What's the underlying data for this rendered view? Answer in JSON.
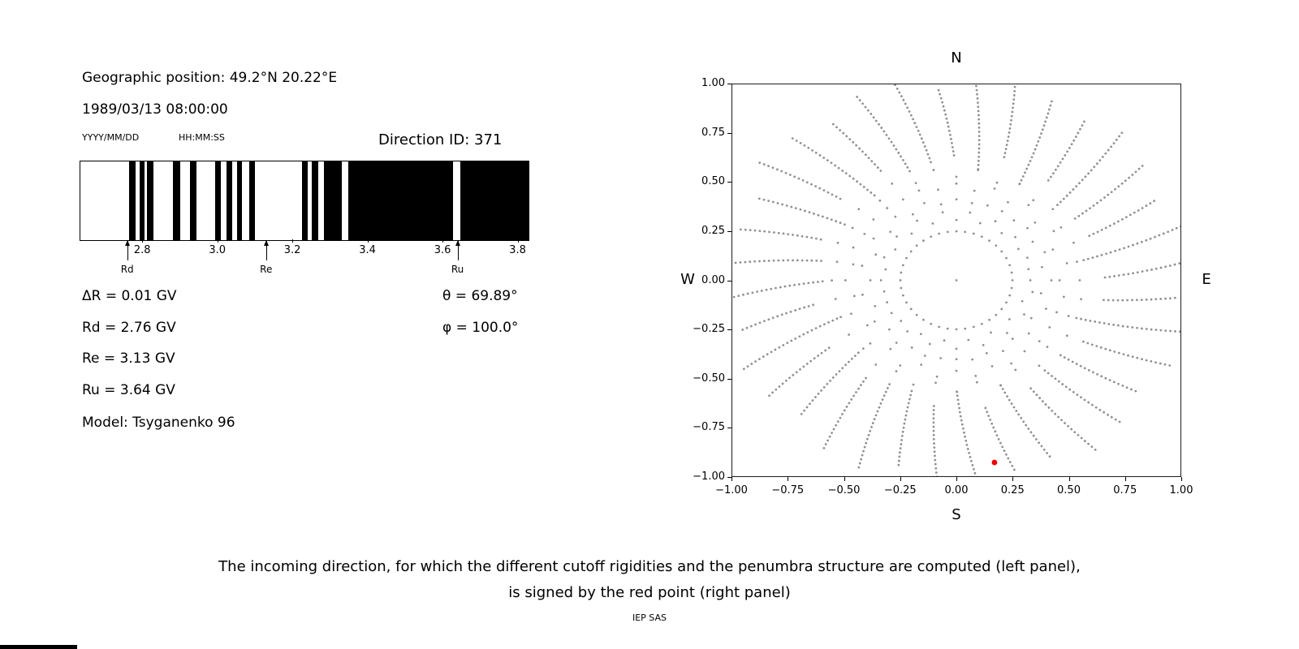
{
  "left_panel": {
    "geo_position": "Geographic position: 49.2°N 20.22°E",
    "datetime": "1989/03/13 08:00:00",
    "date_format": "YYYY/MM/DD",
    "time_format": "HH:MM:SS",
    "direction_id": "Direction ID: 371",
    "values": {
      "delta_r": "ΔR = 0.01 GV",
      "rd": "Rd = 2.76 GV",
      "re": "Re = 3.13 GV",
      "ru": "Ru = 3.64 GV",
      "model": "Model: Tsyganenko 96",
      "theta": "θ = 69.89°",
      "phi": "φ = 100.0°"
    }
  },
  "right_panel": {
    "compass": {
      "north": "N",
      "south": "S",
      "west": "W",
      "east": "E"
    }
  },
  "caption": {
    "line1": "The incoming direction, for which the different cutoff rigidities and the penumbra structure are computed (left panel),",
    "line2": "is signed by the red point (right panel)",
    "credit": "IEP SAS"
  },
  "chart_data": [
    {
      "type": "bar",
      "name": "penumbra-structure",
      "description": "Penumbra barcode plot: black bands mark rigidity intervals (GV) between the lower cutoff Rd and upper cutoff Ru",
      "xlim": [
        2.633,
        3.827
      ],
      "xticks": [
        2.8,
        3.0,
        3.2,
        3.4,
        3.6,
        3.8
      ],
      "band_color": "#000000",
      "bands_gv": [
        [
          2.763,
          2.781
        ],
        [
          2.791,
          2.804
        ],
        [
          2.811,
          2.828
        ],
        [
          2.88,
          2.899
        ],
        [
          2.925,
          2.943
        ],
        [
          2.992,
          3.008
        ],
        [
          3.023,
          3.038
        ],
        [
          3.051,
          3.064
        ],
        [
          3.083,
          3.098
        ],
        [
          3.224,
          3.239
        ],
        [
          3.25,
          3.267
        ],
        [
          3.282,
          3.33
        ],
        [
          3.347,
          3.626
        ],
        [
          3.645,
          3.827
        ]
      ],
      "markers": [
        {
          "label": "Rd",
          "value_gv": 2.76
        },
        {
          "label": "Re",
          "value_gv": 3.13
        },
        {
          "label": "Ru",
          "value_gv": 3.64
        }
      ]
    },
    {
      "type": "scatter",
      "name": "incoming-directions",
      "xlim": [
        -1,
        1
      ],
      "ylim": [
        -1,
        1
      ],
      "xticks": [
        -1,
        -0.75,
        -0.5,
        -0.25,
        0,
        0.25,
        0.5,
        0.75,
        1
      ],
      "yticks": [
        -1,
        -0.75,
        -0.5,
        -0.25,
        0,
        0.25,
        0.5,
        0.75,
        1
      ],
      "tick_decimals": 2,
      "dot_color": "#909090",
      "red_point": {
        "x": 0.17,
        "y": -0.93,
        "color": "#ee0000",
        "meaning": "selected incoming direction (Direction ID 371)"
      },
      "pattern": {
        "description": "Grid of candidate incoming directions: 36 radial spokes of small gray dots every 10° of azimuth; sparse dots from r≈0.33 to 0.58, dense dotted segments from r≈0.62 out to the plot edge with slight curvature; inner dotted ring at r≈0.25 and a single dot at the origin",
        "spoke_count": 36,
        "spoke_step_deg": 10,
        "inner_ring_radius": 0.25,
        "inner_ring_count": 40,
        "center_dot": true,
        "sparse_radii": [
          0.33,
          0.405,
          0.48,
          0.55
        ],
        "dense_r_start": 0.615,
        "dense_r_end": 1.03,
        "dense_r_step": 0.021,
        "curvature_deg_per_r": 11
      }
    }
  ]
}
